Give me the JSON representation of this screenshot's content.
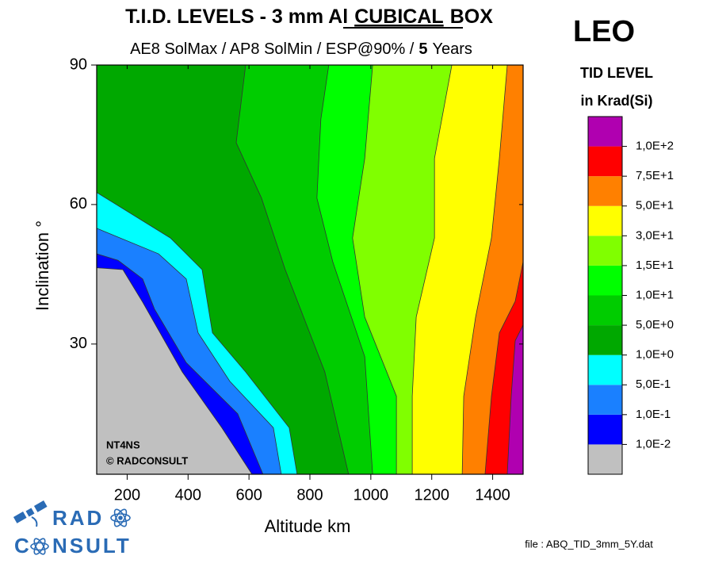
{
  "chart_data": {
    "type": "contour",
    "title": [
      "T.I.D. LEVELS - 3 mm Al",
      "CUBICAL",
      "BOX"
    ],
    "subtitle": [
      "AE8 SolMax / AP8 SolMin / ESP@90% /",
      "5",
      "Years"
    ],
    "corner_title": "LEO",
    "xlabel": "Altitude km",
    "ylabel": "Inclination °",
    "xlim": [
      100,
      1500
    ],
    "xticks": [
      200,
      400,
      600,
      800,
      1000,
      1200,
      1400
    ],
    "ylim": [
      2,
      90
    ],
    "yticks": [
      30,
      60,
      90
    ],
    "colorbar": {
      "title": [
        "TID LEVEL",
        "in Krad(Si)"
      ],
      "levels": [
        {
          "value": 0.01,
          "label": "1,0E-2"
        },
        {
          "value": 0.1,
          "label": "1,0E-1"
        },
        {
          "value": 0.5,
          "label": "5,0E-1"
        },
        {
          "value": 1,
          "label": "1,0E+0"
        },
        {
          "value": 5,
          "label": "5,0E+0"
        },
        {
          "value": 10,
          "label": "1,0E+1"
        },
        {
          "value": 15,
          "label": "1,5E+1"
        },
        {
          "value": 30,
          "label": "3,0E+1"
        },
        {
          "value": 50,
          "label": "5,0E+1"
        },
        {
          "value": 75,
          "label": "7,5E+1"
        },
        {
          "value": 100,
          "label": "1,0E+2"
        }
      ],
      "colors": [
        "#c0c0c0",
        "#0000ff",
        "#1a80ff",
        "#00ffff",
        "#00a800",
        "#00cc00",
        "#00ff00",
        "#80ff00",
        "#ffff00",
        "#ff8000",
        "#ff0000",
        "#b000b0"
      ]
    },
    "contours": [
      {
        "x": [
          610,
          511,
          381,
          251,
          186,
          100
        ],
        "y": [
          2,
          12,
          24,
          39,
          46,
          46.4
        ]
      },
      {
        "x": [
          646,
          563,
          394,
          290,
          251,
          170,
          100
        ],
        "y": [
          2,
          15,
          26,
          37.5,
          44,
          48,
          49.4
        ]
      },
      {
        "x": [
          706,
          680,
          537,
          433,
          394,
          303,
          100
        ],
        "y": [
          2,
          12,
          22,
          32.4,
          44,
          49.4,
          54.9
        ]
      },
      {
        "x": [
          758,
          732,
          589,
          480,
          446,
          342,
          100
        ],
        "y": [
          2,
          12,
          24,
          32.4,
          46,
          52.8,
          62.6
        ]
      },
      {
        "x": [
          927,
          849,
          719,
          641,
          558,
          589
        ],
        "y": [
          2,
          24,
          46,
          61.4,
          73.3,
          90
        ]
      },
      {
        "x": [
          1006,
          980,
          875,
          823,
          836,
          862
        ],
        "y": [
          2,
          27.3,
          47.7,
          61.4,
          78.4,
          90
        ]
      },
      {
        "x": [
          1084,
          1084,
          980,
          940,
          980,
          1006
        ],
        "y": [
          2,
          18.8,
          35.8,
          52.8,
          69.9,
          90
        ]
      },
      {
        "x": [
          1136,
          1136,
          1149,
          1209,
          1209,
          1266
        ],
        "y": [
          2,
          18.8,
          35.8,
          52.8,
          69.9,
          90
        ]
      },
      {
        "x": [
          1300,
          1305,
          1344,
          1396,
          1422,
          1448
        ],
        "y": [
          2,
          18.8,
          35.8,
          52.8,
          69.9,
          90
        ]
      },
      {
        "x": [
          1375,
          1396,
          1422,
          1474,
          1500
        ],
        "y": [
          2,
          18.8,
          32.4,
          39.2,
          47.7
        ]
      },
      {
        "x": [
          1448,
          1461,
          1474,
          1500
        ],
        "y": [
          2,
          18.8,
          30.7,
          34.1
        ]
      }
    ],
    "watermark": [
      "NT4NS",
      "© RADCONSULT"
    ],
    "logo": {
      "top": "RAD",
      "bottom": [
        "C",
        "NSULT"
      ]
    },
    "file_note": "file : ABQ_TID_3mm_5Y.dat"
  }
}
